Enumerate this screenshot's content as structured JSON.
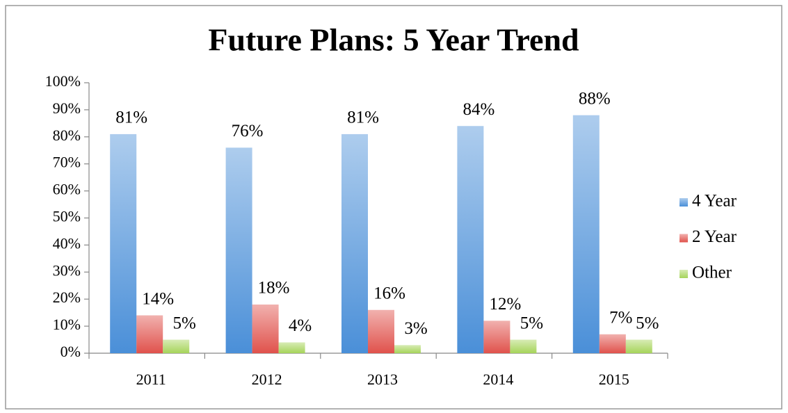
{
  "chart_data": {
    "type": "bar",
    "title": "Future Plans: 5 Year Trend",
    "categories": [
      "2011",
      "2012",
      "2013",
      "2014",
      "2015"
    ],
    "series": [
      {
        "name": "4 Year",
        "color": "#4a8fd8",
        "values": [
          81,
          76,
          81,
          84,
          88
        ],
        "value_labels": [
          "81%",
          "76%",
          "81%",
          "84%",
          "88%"
        ]
      },
      {
        "name": "2 Year",
        "color": "#e0524c",
        "values": [
          14,
          18,
          16,
          12,
          7
        ],
        "value_labels": [
          "14%",
          "18%",
          "16%",
          "12%",
          "7%"
        ]
      },
      {
        "name": "Other",
        "color": "#a6d45a",
        "values": [
          5,
          4,
          3,
          5,
          5
        ],
        "value_labels": [
          "5%",
          "4%",
          "3%",
          "5%",
          "5%"
        ]
      }
    ],
    "ylim": [
      0,
      100
    ],
    "yticks": [
      {
        "value": 0,
        "label": "0%"
      },
      {
        "value": 10,
        "label": "10%"
      },
      {
        "value": 20,
        "label": "20%"
      },
      {
        "value": 30,
        "label": "30%"
      },
      {
        "value": 40,
        "label": "40%"
      },
      {
        "value": 50,
        "label": "50%"
      },
      {
        "value": 60,
        "label": "60%"
      },
      {
        "value": 70,
        "label": "70%"
      },
      {
        "value": 80,
        "label": "80%"
      },
      {
        "value": 90,
        "label": "90%"
      },
      {
        "value": 100,
        "label": "100%"
      }
    ],
    "grid": false,
    "legend": "right"
  }
}
